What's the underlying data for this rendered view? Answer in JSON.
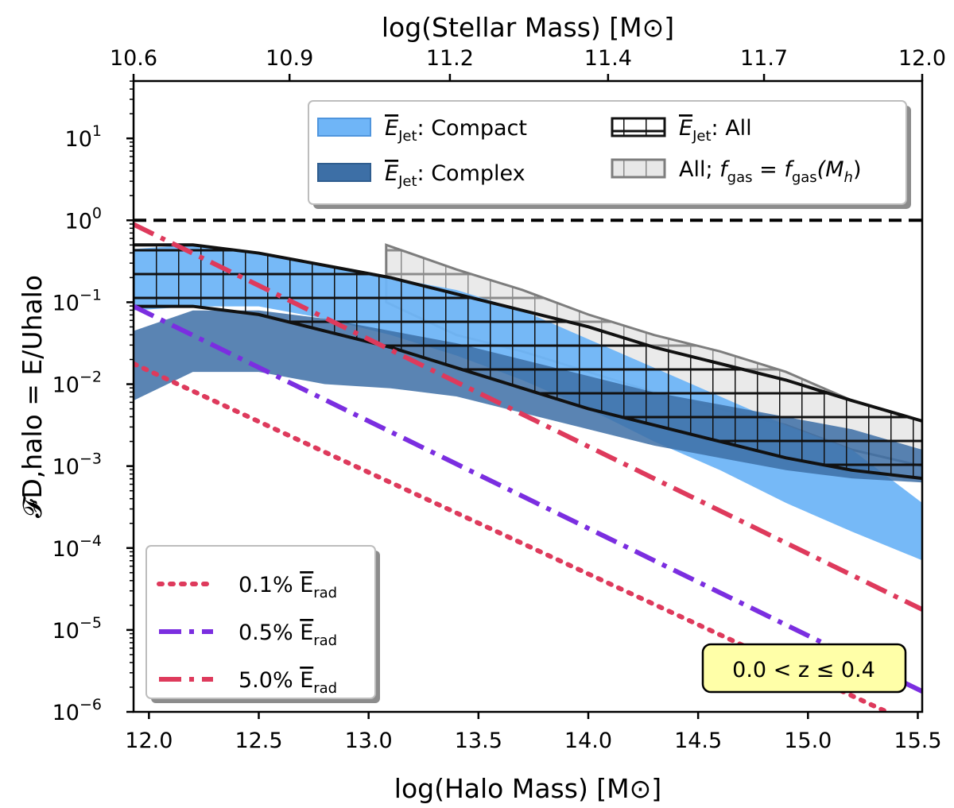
{
  "chart_data": {
    "type": "area",
    "xlabel": "log(Halo Mass) [M⊙]",
    "ylabel": "𝓕D,halo = E/Uhalo",
    "top_xlabel": "log(Stellar Mass) [M⊙]",
    "xlim": [
      11.93,
      15.52
    ],
    "ylim_log10": [
      -6,
      1.7
    ],
    "x_ticks": [
      12.0,
      12.5,
      13.0,
      13.5,
      14.0,
      14.5,
      15.0,
      15.5
    ],
    "x_tick_labels": [
      "12.0",
      "12.5",
      "13.0",
      "13.5",
      "14.0",
      "14.5",
      "15.0",
      "15.5"
    ],
    "y_ticks_log10": [
      1,
      0,
      -1,
      -2,
      -3,
      -4,
      -5,
      -6
    ],
    "y_tick_labels": [
      {
        "base": "10",
        "exp": "1"
      },
      {
        "base": "10",
        "exp": "0"
      },
      {
        "base": "10",
        "exp": "−1"
      },
      {
        "base": "10",
        "exp": "−2"
      },
      {
        "base": "10",
        "exp": "−3"
      },
      {
        "base": "10",
        "exp": "−4"
      },
      {
        "base": "10",
        "exp": "−5"
      },
      {
        "base": "10",
        "exp": "−6"
      }
    ],
    "top_ticks": [
      {
        "halo": 11.93,
        "label": "10.6"
      },
      {
        "halo": 12.64,
        "label": "10.9"
      },
      {
        "halo": 13.37,
        "label": "11.2"
      },
      {
        "halo": 14.09,
        "label": "11.4"
      },
      {
        "halo": 14.8,
        "label": "11.7"
      },
      {
        "halo": 15.52,
        "label": "12.0"
      }
    ],
    "reference_line": {
      "name": "unity",
      "y": 1.0
    },
    "bands": [
      {
        "name": "compact",
        "color": "#6fb5f7",
        "x": [
          11.93,
          12.2,
          12.5,
          12.8,
          13.1,
          13.4,
          13.7,
          14.0,
          14.3,
          14.6,
          14.9,
          15.2,
          15.52
        ],
        "lower_log10": [
          -1.1,
          -1.05,
          -1.05,
          -1.2,
          -1.4,
          -1.65,
          -1.95,
          -2.3,
          -2.7,
          -3.05,
          -3.45,
          -3.8,
          -4.15
        ],
        "upper_log10": [
          -0.35,
          -0.3,
          -0.4,
          -0.55,
          -0.7,
          -0.85,
          -1.1,
          -1.45,
          -1.8,
          -2.15,
          -2.5,
          -2.8,
          -3.45
        ]
      },
      {
        "name": "complex",
        "color": "#3d6fa6",
        "x": [
          11.93,
          12.2,
          12.5,
          12.8,
          13.1,
          13.4,
          13.7,
          14.0,
          14.3,
          14.6,
          14.9,
          15.2,
          15.52
        ],
        "lower_log10": [
          -2.2,
          -1.85,
          -1.85,
          -2.0,
          -2.05,
          -2.15,
          -2.35,
          -2.55,
          -2.75,
          -2.9,
          -3.05,
          -3.15,
          -3.2
        ],
        "upper_log10": [
          -1.35,
          -1.1,
          -1.1,
          -1.2,
          -1.35,
          -1.5,
          -1.7,
          -1.9,
          -2.1,
          -2.25,
          -2.4,
          -2.55,
          -2.8
        ]
      },
      {
        "name": "all",
        "color": "#000000",
        "x": [
          11.93,
          12.2,
          12.5,
          12.8,
          13.1,
          13.4,
          13.7,
          14.0,
          14.3,
          14.6,
          14.9,
          15.2,
          15.52
        ],
        "lower_log10": [
          -1.05,
          -1.05,
          -1.15,
          -1.35,
          -1.55,
          -1.8,
          -2.05,
          -2.3,
          -2.5,
          -2.7,
          -2.9,
          -3.05,
          -3.15
        ],
        "upper_log10": [
          -0.3,
          -0.3,
          -0.4,
          -0.55,
          -0.7,
          -0.9,
          -1.1,
          -1.3,
          -1.55,
          -1.75,
          -1.95,
          -2.2,
          -2.45
        ]
      },
      {
        "name": "all_fgas",
        "color": "#9a9a9a",
        "x": [
          13.08,
          13.4,
          13.7,
          14.0,
          14.3,
          14.6,
          14.9,
          15.2,
          15.52
        ],
        "lower_log10": [
          -1.0,
          -1.4,
          -1.6,
          -1.85,
          -2.1,
          -2.3,
          -2.5,
          -2.8,
          -3.0
        ],
        "upper_log10": [
          -0.3,
          -0.6,
          -0.85,
          -1.15,
          -1.4,
          -1.6,
          -1.85,
          -2.2,
          -2.45
        ]
      }
    ],
    "lines": [
      {
        "name": "0.1%",
        "style": "dotted",
        "color": "#de3a5c",
        "x": [
          11.93,
          15.52
        ],
        "y_log10": [
          -1.75,
          -6.2
        ]
      },
      {
        "name": "0.5%",
        "style": "dashdot",
        "color": "#7b2ee0",
        "x": [
          11.93,
          15.52
        ],
        "y_log10": [
          -1.05,
          -5.75
        ]
      },
      {
        "name": "5.0%",
        "style": "dashdot",
        "color": "#de3a5c",
        "x": [
          11.93,
          15.52
        ],
        "y_log10": [
          -0.05,
          -4.75
        ]
      }
    ],
    "legend_top": {
      "position": "upper-right",
      "entries": [
        {
          "key": "compact",
          "prefix": "E",
          "sub": "Jet",
          "rest": ": Compact"
        },
        {
          "key": "complex",
          "prefix": "E",
          "sub": "Jet",
          "rest": ": Complex"
        },
        {
          "key": "all",
          "prefix": "E",
          "sub": "Jet",
          "rest": ": All"
        },
        {
          "key": "all_fgas",
          "text1": "All; ",
          "f": "f",
          "sub1": "gas",
          "eq": " = ",
          "sub2": "gas",
          "arg": "(M",
          "argsub": "h",
          "close": ")"
        }
      ]
    },
    "legend_bottom": {
      "position": "lower-left",
      "entries": [
        {
          "key": "0.1%",
          "label": "0.1% ",
          "sym": "E",
          "sub": "rad"
        },
        {
          "key": "0.5%",
          "label": "0.5% ",
          "sym": "E",
          "sub": "rad"
        },
        {
          "key": "5.0%",
          "label": "5.0% ",
          "sym": "E",
          "sub": "rad"
        }
      ]
    },
    "annotation": {
      "text": "0.0 < z ≤ 0.4",
      "background": "#ffffa8"
    }
  }
}
